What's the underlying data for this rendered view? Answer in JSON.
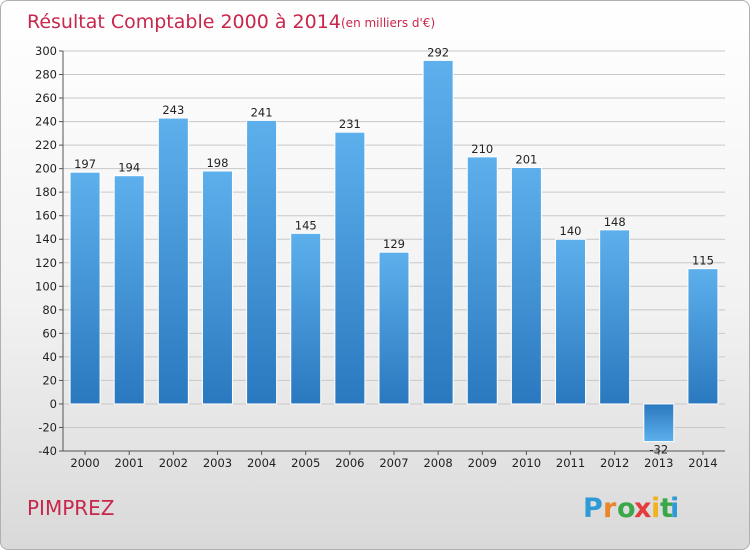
{
  "chart_data": {
    "type": "bar",
    "title": "Résultat Comptable 2000 à 2014",
    "subtitle": "(en milliers d'€)",
    "categories": [
      "2000",
      "2001",
      "2002",
      "2003",
      "2004",
      "2005",
      "2006",
      "2007",
      "2008",
      "2009",
      "2010",
      "2011",
      "2012",
      "2013",
      "2014"
    ],
    "values": [
      197,
      194,
      243,
      198,
      241,
      145,
      231,
      129,
      292,
      210,
      201,
      140,
      148,
      -32,
      115
    ],
    "ylim": [
      -40,
      300
    ],
    "yticks": [
      -40,
      -20,
      0,
      20,
      40,
      60,
      80,
      100,
      120,
      140,
      160,
      180,
      200,
      220,
      240,
      260,
      280,
      300
    ],
    "grid": true,
    "bar_color": "#3a8fd6"
  },
  "commune": "PIMPREZ",
  "logo": {
    "letters": [
      "P",
      "r",
      "o",
      "x",
      "i",
      "t",
      "i"
    ],
    "colors": [
      "#2f9ad6",
      "#e9862a",
      "#3aa84a",
      "#e43c3c",
      "#f0b21d",
      "#3aa84a",
      "#2f9ad6"
    ]
  }
}
